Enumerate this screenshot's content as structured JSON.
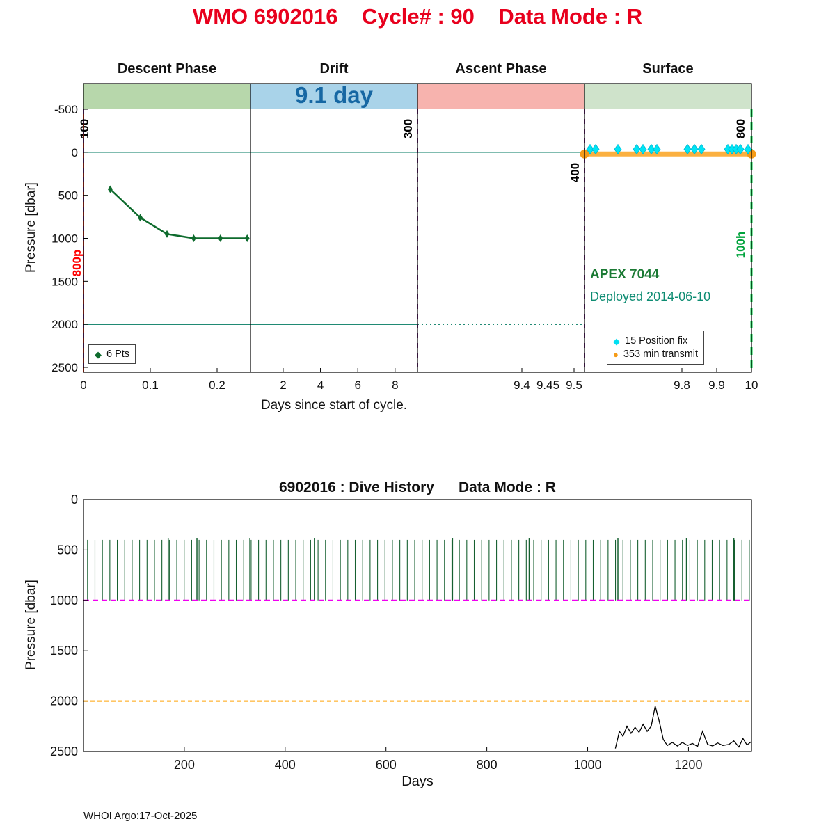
{
  "header": {
    "title": "WMO 6902016    Cycle# : 90    Data Mode : R"
  },
  "footer": {
    "credit": "WHOI Argo:17-Oct-2025"
  },
  "colors": {
    "title": "#e8001d",
    "drift-text": "#1667a3",
    "apex": "#1b7a34",
    "deployed": "#0d8c72"
  },
  "chart_data": [
    {
      "type": "line",
      "id": "cycle-timing-plot",
      "xlabel": "Days since start of cycle.",
      "ylabel": "Pressure [dbar]",
      "ylim": [
        -500,
        2500
      ],
      "yticks": [
        -500,
        0,
        500,
        1000,
        1500,
        2000,
        2500
      ],
      "panels": [
        {
          "label": "Descent Phase",
          "band_color": "#b7d7ab",
          "xlim": [
            0,
            0.25
          ],
          "xticks": [
            0,
            0.1,
            0.2
          ]
        },
        {
          "label": "Drift",
          "band_color": "#a9d3e9",
          "band_text": "9.1 day",
          "xlim": [
            0.25,
            9.2
          ],
          "xticks": [
            2,
            4,
            6,
            8
          ]
        },
        {
          "label": "Ascent Phase",
          "band_color": "#f7b3ae",
          "xlim": [
            9.2,
            9.52
          ],
          "xticks": [
            9.4,
            9.45,
            9.5
          ]
        },
        {
          "label": "Surface",
          "band_color": "#cfe3cb",
          "xlim": [
            9.52,
            10
          ],
          "xticks": [
            9.8,
            9.9,
            10
          ]
        }
      ],
      "h_lines": [
        {
          "y": 0,
          "x1": 0,
          "x2": 10,
          "color": "#007a60",
          "style": "solid"
        },
        {
          "y": 2000,
          "x1": 0,
          "x2": 9.2,
          "color": "#007a60",
          "style": "solid"
        },
        {
          "y": 2000,
          "x1": 9.2,
          "x2": 9.52,
          "color": "#007a60",
          "style": "dotted"
        }
      ],
      "v_lines": [
        {
          "x": 0,
          "color": "#7e2f8e",
          "dash": "7 7",
          "width": 2,
          "label": "100",
          "label_dx": 7,
          "label_y": 185,
          "label_color": "#000000"
        },
        {
          "x": 0,
          "color": "#ff3d1e",
          "dash": "7 7",
          "offset": 7,
          "width": 2,
          "label": "800p",
          "label_dx": -4,
          "label_y": 378,
          "label_color": "#ff0000"
        },
        {
          "x": 9.2,
          "color": "#7e2f8e",
          "dash": "7 7",
          "width": 2,
          "label": "300",
          "label_dx": -8,
          "label_y": 185,
          "label_color": "#000000"
        },
        {
          "x": 9.52,
          "color": "#7e2f8e",
          "dash": "7 7",
          "width": 2,
          "label": "400",
          "label_dx": -8,
          "label_y": 248,
          "label_color": "#000000"
        },
        {
          "x": 10,
          "color": "#00cc44",
          "dash": "11 8",
          "width": 3,
          "label": "800",
          "label_dx": -10,
          "label_y": 185,
          "label_color": "#000000"
        },
        {
          "x": 10,
          "color": "none",
          "label": "100h",
          "label_dx": -10,
          "label_y": 352,
          "label_color": "#00a33c"
        }
      ],
      "series": [
        {
          "name": "descent-profile",
          "color": "#0e6b2d",
          "marker": "diamond",
          "marker_size": 3.5,
          "line_width": 2.5,
          "points": [
            [
              0.04,
              430
            ],
            [
              0.085,
              760
            ],
            [
              0.125,
              950
            ],
            [
              0.165,
              1000
            ],
            [
              0.205,
              1000
            ],
            [
              0.245,
              1000
            ]
          ]
        },
        {
          "name": "transmit-span",
          "color": "#fbb040",
          "line_width": 7,
          "endpoints": true,
          "endpoint_color": "#f59b17",
          "endpoint_r": 6.5,
          "points": [
            [
              9.52,
              20
            ],
            [
              10,
              20
            ]
          ]
        },
        {
          "name": "position-fixes",
          "color": "#00e4f5",
          "edge": "#00b5cf",
          "marker": "diamond",
          "marker_size": 5,
          "no_line": true,
          "points": [
            [
              9.536,
              -35
            ],
            [
              9.552,
              -35
            ],
            [
              9.616,
              -35
            ],
            [
              9.67,
              -35
            ],
            [
              9.688,
              -35
            ],
            [
              9.712,
              -35
            ],
            [
              9.728,
              -35
            ],
            [
              9.816,
              -35
            ],
            [
              9.836,
              -35
            ],
            [
              9.856,
              -35
            ],
            [
              9.932,
              -35
            ],
            [
              9.944,
              -35
            ],
            [
              9.956,
              -35
            ],
            [
              9.968,
              -35
            ],
            [
              9.99,
              -35
            ]
          ]
        }
      ],
      "annotations": [
        {
          "text": "APEX 7044"
        },
        {
          "text": "Deployed 2014-06-10"
        }
      ],
      "legend_pts": {
        "marker": "diamond",
        "color": "#0e6b2d",
        "label": "6 Pts"
      },
      "legend_surface": [
        {
          "marker": "diamond",
          "color": "#00dff2",
          "label": "15 Position fix"
        },
        {
          "marker": "circle",
          "color": "#f59b17",
          "label": "353 min transmit"
        }
      ]
    },
    {
      "type": "line",
      "id": "dive-history-plot",
      "title": "6902016 : Dive History      Data Mode : R",
      "xlabel": "Days",
      "ylabel": "Pressure [dbar]",
      "xlim": [
        0,
        1325
      ],
      "ylim": [
        0,
        2500
      ],
      "xticks": [
        200,
        400,
        600,
        800,
        1000,
        1200
      ],
      "yticks": [
        0,
        500,
        1000,
        1500,
        2000,
        2500
      ],
      "dive_lines": {
        "count": 90,
        "first_day": 8,
        "spacing_days": 14.75,
        "top_dbar": 400,
        "bottom_dbar": 1000,
        "color": "#166030",
        "taller_days": [
          168,
          225,
          330,
          458,
          732,
          884,
          1060,
          1196,
          1290
        ],
        "taller_top_dbar": 380
      },
      "h_lines": [
        {
          "y": 1000,
          "color": "#f000f0",
          "dash": "8 5",
          "width": 2,
          "name": "drift-depth-line"
        },
        {
          "y": 2000,
          "color": "#ffa408",
          "dash": "6 4",
          "width": 2,
          "name": "profile-depth-line"
        }
      ],
      "series": [
        {
          "name": "deep-trace",
          "color": "#000000",
          "line_width": 1.3,
          "points": [
            [
              1055,
              2470
            ],
            [
              1063,
              2300
            ],
            [
              1070,
              2350
            ],
            [
              1078,
              2250
            ],
            [
              1086,
              2320
            ],
            [
              1094,
              2260
            ],
            [
              1102,
              2310
            ],
            [
              1110,
              2230
            ],
            [
              1118,
              2300
            ],
            [
              1126,
              2250
            ],
            [
              1134,
              2050
            ],
            [
              1142,
              2200
            ],
            [
              1150,
              2380
            ],
            [
              1158,
              2440
            ],
            [
              1168,
              2410
            ],
            [
              1178,
              2445
            ],
            [
              1188,
              2410
            ],
            [
              1198,
              2440
            ],
            [
              1208,
              2420
            ],
            [
              1218,
              2450
            ],
            [
              1228,
              2300
            ],
            [
              1238,
              2430
            ],
            [
              1248,
              2445
            ],
            [
              1258,
              2415
            ],
            [
              1268,
              2440
            ],
            [
              1280,
              2430
            ],
            [
              1290,
              2395
            ],
            [
              1300,
              2455
            ],
            [
              1308,
              2370
            ],
            [
              1316,
              2435
            ],
            [
              1324,
              2405
            ]
          ]
        }
      ]
    }
  ]
}
